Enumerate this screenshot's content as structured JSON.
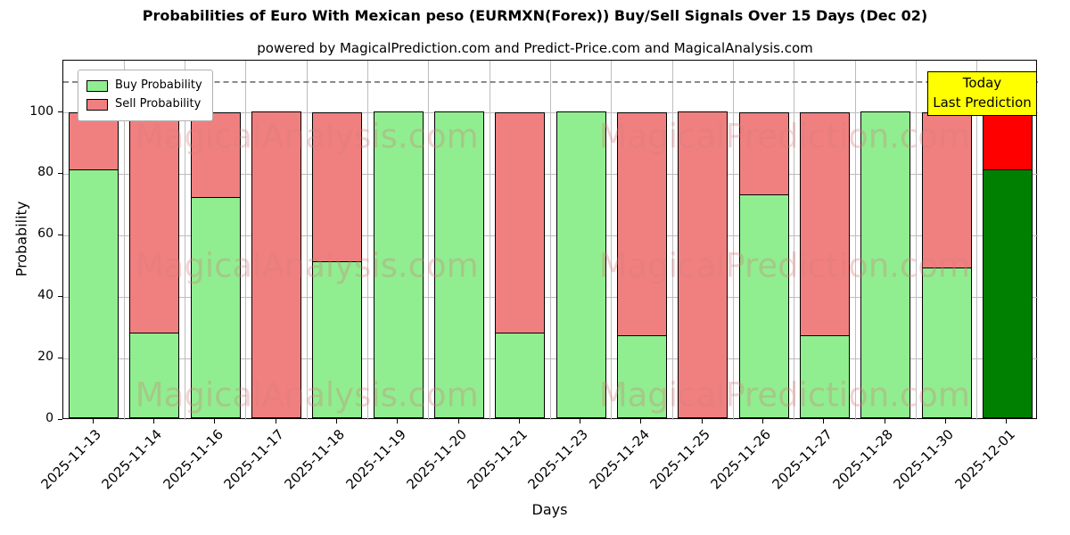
{
  "title": "Probabilities of Euro With Mexican peso (EURMXN(Forex)) Buy/Sell Signals Over 15 Days (Dec 02)",
  "subtitle": "powered by MagicalPrediction.com and Predict-Price.com and MagicalAnalysis.com",
  "chart_data": {
    "type": "bar",
    "stacked": true,
    "title": "Probabilities of Euro With Mexican peso (EURMXN(Forex)) Buy/Sell Signals Over 15 Days (Dec 02)",
    "subtitle": "powered by MagicalPrediction.com and Predict-Price.com and MagicalAnalysis.com",
    "xlabel": "Days",
    "ylabel": "Probability",
    "ylim": [
      0,
      117
    ],
    "yticks": [
      0,
      20,
      40,
      60,
      80,
      100
    ],
    "grid": true,
    "legend_position": "upper left",
    "dashed_line_y": 110,
    "categories": [
      "2025-11-13",
      "2025-11-14",
      "2025-11-16",
      "2025-11-17",
      "2025-11-18",
      "2025-11-19",
      "2025-11-20",
      "2025-11-21",
      "2025-11-23",
      "2025-11-24",
      "2025-11-25",
      "2025-11-26",
      "2025-11-27",
      "2025-11-28",
      "2025-11-30",
      "2025-12-01"
    ],
    "series": [
      {
        "name": "Buy Probability",
        "color": "#90EE90",
        "values": [
          81,
          28,
          72,
          0,
          51,
          100,
          100,
          28,
          100,
          27,
          0,
          73,
          27,
          100,
          49,
          81
        ]
      },
      {
        "name": "Sell Probability",
        "color": "#F08080",
        "values": [
          19,
          72,
          28,
          100,
          49,
          0,
          0,
          72,
          0,
          73,
          100,
          27,
          73,
          0,
          51,
          19
        ]
      }
    ],
    "today": {
      "index": 15,
      "buy_color": "#008000",
      "sell_color": "#FF0000"
    },
    "annotation": {
      "lines": [
        "Today",
        "Last Prediction"
      ],
      "bg": "#FFFF00"
    },
    "watermarks": [
      "MagicalAnalysis.com",
      "MagicalPrediction.com"
    ],
    "colors": {
      "grid": "#bdbdbd",
      "dashed_line": "#8a8a8a",
      "bar_edge": "#000000"
    }
  }
}
